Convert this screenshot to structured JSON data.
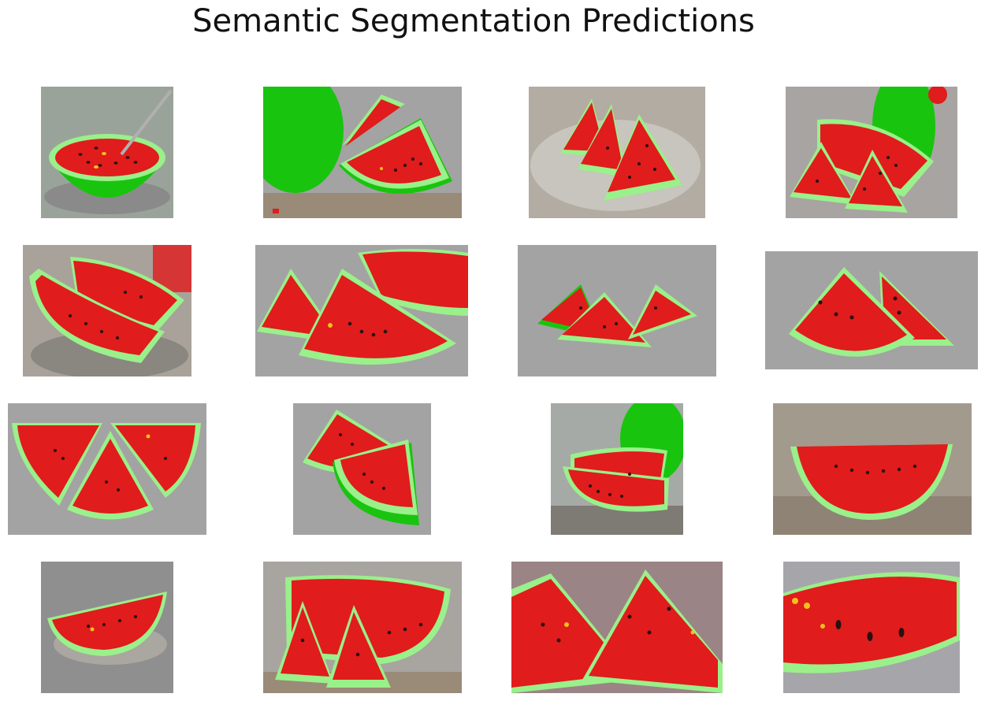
{
  "figure": {
    "title": "Semantic Segmentation Predictions"
  },
  "colors": {
    "background_class": "#a3a3a3",
    "flesh_class": "#e01c1c",
    "rind_class": "#9af08a",
    "skin_class": "#19c40f",
    "seed": "#2a1010",
    "seed_yellow": "#f2c21a"
  },
  "panels": [
    {
      "name": "panel-r1c1",
      "scene": "bowl-half",
      "bg": "#9aa39a"
    },
    {
      "name": "panel-r1c2",
      "scene": "whole-and-slices",
      "bg": "#a3a3a3"
    },
    {
      "name": "panel-r1c3",
      "scene": "plate-slices",
      "bg": "#b3aca2"
    },
    {
      "name": "panel-r1c4",
      "scene": "whole-and-wedges",
      "bg": "#a8a4a2"
    },
    {
      "name": "panel-r2c1",
      "scene": "two-slices-table",
      "bg": "#a8a29a"
    },
    {
      "name": "panel-r2c2",
      "scene": "wedges-stack",
      "bg": "#a3a3a3"
    },
    {
      "name": "panel-r2c3",
      "scene": "three-wedges",
      "bg": "#a3a3a3"
    },
    {
      "name": "panel-r2c4",
      "scene": "triangle-wedges",
      "bg": "#a3a3a3"
    },
    {
      "name": "panel-r3c1",
      "scene": "three-slices-flat",
      "bg": "#a3a3a3"
    },
    {
      "name": "panel-r3c2",
      "scene": "two-wedges-tilted",
      "bg": "#a3a3a3"
    },
    {
      "name": "panel-r3c3",
      "scene": "slices-with-whole",
      "bg": "#a5aaa6"
    },
    {
      "name": "panel-r3c4",
      "scene": "single-slice-board",
      "bg": "#a39a8e"
    },
    {
      "name": "panel-r4c1",
      "scene": "slice-on-plate",
      "bg": "#8f8f8f"
    },
    {
      "name": "panel-r4c2",
      "scene": "big-half-with-wedges",
      "bg": "#a8a4a0"
    },
    {
      "name": "panel-r4c3",
      "scene": "close-up-triangles",
      "bg": "#9a8486"
    },
    {
      "name": "panel-r4c4",
      "scene": "close-up-slice",
      "bg": "#a6a6aa"
    }
  ]
}
